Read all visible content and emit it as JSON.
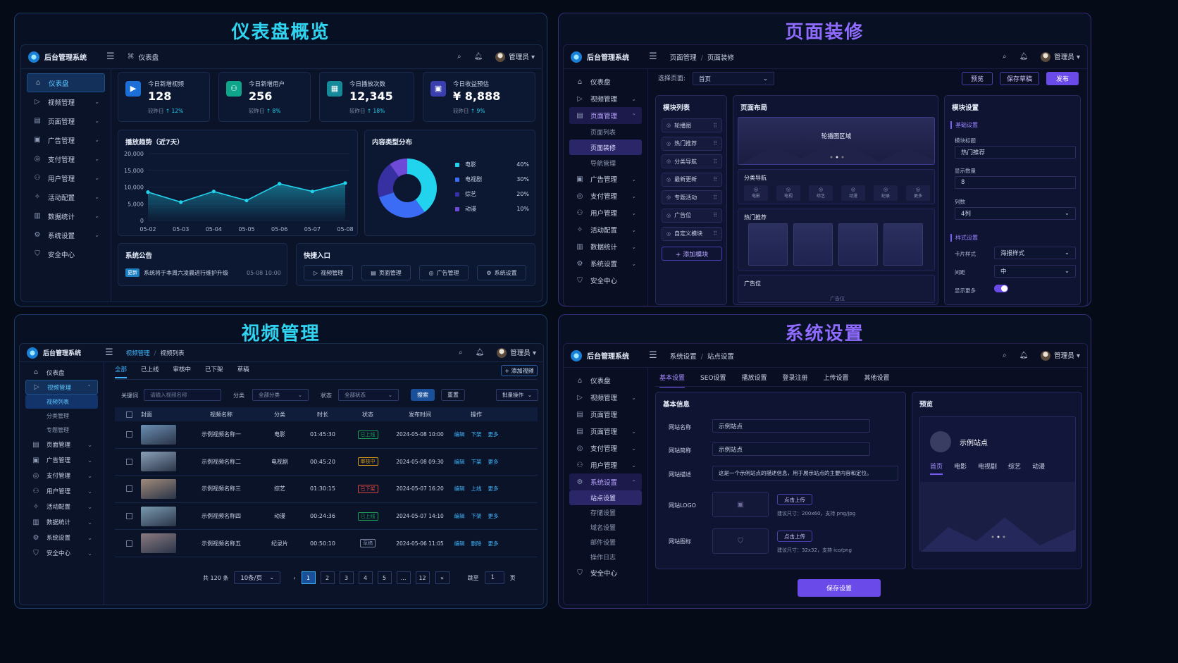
{
  "panels": {
    "dashboard": "仪表盘概览",
    "decor": "页面装修",
    "video": "视频管理",
    "settings": "系统设置"
  },
  "common": {
    "brand": "后台管理系统",
    "user": "管理员"
  },
  "dash": {
    "crumb": "仪表盘",
    "nav": [
      "仪表盘",
      "视频管理",
      "页面管理",
      "广告管理",
      "支付管理",
      "用户管理",
      "活动配置",
      "数据统计",
      "系统设置",
      "安全中心"
    ],
    "stats": [
      {
        "label": "今日新增视频",
        "value": "128",
        "cmp": "较昨日",
        "delta": "↑ 12%"
      },
      {
        "label": "今日新增用户",
        "value": "256",
        "cmp": "较昨日",
        "delta": "↑ 8%"
      },
      {
        "label": "今日播放次数",
        "value": "12,345",
        "cmp": "较昨日",
        "delta": "↑ 18%"
      },
      {
        "label": "今日收益预估",
        "value": "¥ 8,888",
        "cmp": "较昨日",
        "delta": "↑ 9%"
      }
    ],
    "trend_title": "播放趋势（近7天）",
    "pie_title": "内容类型分布",
    "pie_legend": [
      {
        "name": "电影",
        "pct": "40%",
        "color": "#22d3ee"
      },
      {
        "name": "电视剧",
        "pct": "30%",
        "color": "#3b6cf5"
      },
      {
        "name": "综艺",
        "pct": "20%",
        "color": "#3730a3"
      },
      {
        "name": "动漫",
        "pct": "10%",
        "color": "#6d4bd8"
      }
    ],
    "notice_title": "系统公告",
    "notice_tag": "更新",
    "notice_text": "系统将于本周六凌晨进行维护升级",
    "notice_time": "05-08 10:00",
    "quick_title": "快捷入口",
    "quick": [
      "视频管理",
      "页面管理",
      "广告管理",
      "系统设置"
    ]
  },
  "chart_data": [
    {
      "type": "area",
      "title": "播放趋势（近7天）",
      "categories": [
        "05-02",
        "05-03",
        "05-04",
        "05-05",
        "05-06",
        "05-07",
        "05-08"
      ],
      "values": [
        8500,
        5500,
        8700,
        6000,
        11000,
        8700,
        11200
      ],
      "yticks": [
        "20,000",
        "15,000",
        "10,000",
        "5,000",
        "0"
      ],
      "ylim": [
        0,
        20000
      ],
      "grid": true
    },
    {
      "type": "pie",
      "title": "内容类型分布",
      "categories": [
        "电影",
        "电视剧",
        "综艺",
        "动漫"
      ],
      "values": [
        40,
        30,
        20,
        10
      ]
    }
  ],
  "decor": {
    "crumb1": "页面管理",
    "crumb2": "页面装修",
    "nav": [
      "仪表盘",
      "视频管理",
      "页面管理",
      "广告管理",
      "支付管理",
      "用户管理",
      "活动配置",
      "数据统计",
      "系统设置",
      "安全中心"
    ],
    "subs": [
      "页面列表",
      "页面装修",
      "导航管理"
    ],
    "select_label": "选择页面:",
    "select_value": "首页",
    "btn_preview": "预览",
    "btn_draft": "保存草稿",
    "btn_publish": "发布",
    "modules_title": "模块列表",
    "modules": [
      "轮播图",
      "热门推荐",
      "分类导航",
      "最新更新",
      "专题活动",
      "广告位",
      "自定义模块"
    ],
    "add_module": "+ 添加模块",
    "layout_title": "页面布局",
    "carousel": "轮播图区域",
    "cat_nav": "分类导航",
    "cat_items": [
      "电影",
      "电视",
      "综艺",
      "动漫",
      "纪录",
      "更多"
    ],
    "hot": "热门推荐",
    "ad": "广告位",
    "ad_sub": "广告位",
    "settings_title": "模块设置",
    "basic": "基础设置",
    "f_title": "模块标题",
    "f_title_v": "热门推荐",
    "f_count": "显示数量",
    "f_count_v": "8",
    "f_cols": "列数",
    "f_cols_v": "4列",
    "style": "样式设置",
    "f_card": "卡片样式",
    "f_card_v": "海报样式",
    "f_gap": "间距",
    "f_gap_v": "中",
    "f_more": "显示更多"
  },
  "video": {
    "crumb1": "视频管理",
    "crumb2": "视频列表",
    "nav": [
      "仪表盘",
      "视频管理",
      "页面管理",
      "广告管理",
      "支付管理",
      "用户管理",
      "活动配置",
      "数据统计",
      "系统设置",
      "安全中心"
    ],
    "subs": [
      "视频列表",
      "分类管理",
      "专题管理"
    ],
    "tabs": [
      "全部",
      "已上线",
      "审核中",
      "已下架",
      "草稿"
    ],
    "add": "+ 添加视频",
    "kw": "关键词",
    "kw_ph": "请输入视频名称",
    "cat": "分类",
    "cat_v": "全部分类",
    "st": "状态",
    "st_v": "全部状态",
    "search": "搜索",
    "reset": "重置",
    "batch": "批量操作",
    "cols": [
      "封面",
      "视频名称",
      "分类",
      "时长",
      "状态",
      "发布时间",
      "操作"
    ],
    "rows": [
      {
        "name": "示例视频名称一",
        "cat": "电影",
        "dur": "01:45:30",
        "status": "已上线",
        "sc": "#1f9d55",
        "time": "2024-05-08 10:00",
        "a1": "编辑",
        "a2": "下架",
        "a3": "更多"
      },
      {
        "name": "示例视频名称二",
        "cat": "电视剧",
        "dur": "00:45:20",
        "status": "审核中",
        "sc": "#d99a1c",
        "time": "2024-05-08 09:30",
        "a1": "编辑",
        "a2": "下架",
        "a3": "更多"
      },
      {
        "name": "示例视频名称三",
        "cat": "综艺",
        "dur": "01:30:15",
        "status": "已下架",
        "sc": "#d9453b",
        "time": "2024-05-07 16:20",
        "a1": "编辑",
        "a2": "上线",
        "a3": "更多"
      },
      {
        "name": "示例视频名称四",
        "cat": "动漫",
        "dur": "00:24:36",
        "status": "已上线",
        "sc": "#1f9d55",
        "time": "2024-05-07 14:10",
        "a1": "编辑",
        "a2": "下架",
        "a3": "更多"
      },
      {
        "name": "示例视频名称五",
        "cat": "纪录片",
        "dur": "00:50:10",
        "status": "草稿",
        "sc": "#7d8aa6",
        "time": "2024-05-06 11:05",
        "a1": "编辑",
        "a2": "删除",
        "a3": "更多"
      }
    ],
    "total": "共 120 条",
    "per": "10条/页",
    "pages": [
      "1",
      "2",
      "3",
      "4",
      "5",
      "...",
      "12"
    ],
    "goto": "跳至",
    "goto_v": "1",
    "page_unit": "页"
  },
  "sys": {
    "crumb1": "系统设置",
    "crumb2": "站点设置",
    "nav": [
      "仪表盘",
      "视频管理",
      "页面管理",
      "页面管理",
      "支付管理",
      "用户管理",
      "系统设置",
      "安全中心"
    ],
    "subs": [
      "站点设置",
      "存储设置",
      "域名设置",
      "邮件设置",
      "操作日志"
    ],
    "tabs": [
      "基本设置",
      "SEO设置",
      "播放设置",
      "登录注册",
      "上传设置",
      "其他设置"
    ],
    "basic": "基本信息",
    "f_name": "网站名称",
    "f_name_v": "示例站点",
    "f_short": "网站简称",
    "f_short_v": "示例站点",
    "f_desc": "网站描述",
    "f_desc_v": "这是一个示例站点的描述信息，用于展示站点的主要内容和定位。",
    "f_logo": "网站LOGO",
    "upload": "点击上传",
    "logo_hint": "建议尺寸：200x60，支持 png/jpg",
    "f_icon": "网站图标",
    "icon_hint": "建议尺寸：32x32，支持 ico/png",
    "preview": "预览",
    "site": "示例站点",
    "ptabs": [
      "首页",
      "电影",
      "电视剧",
      "综艺",
      "动漫"
    ],
    "save": "保存设置"
  }
}
